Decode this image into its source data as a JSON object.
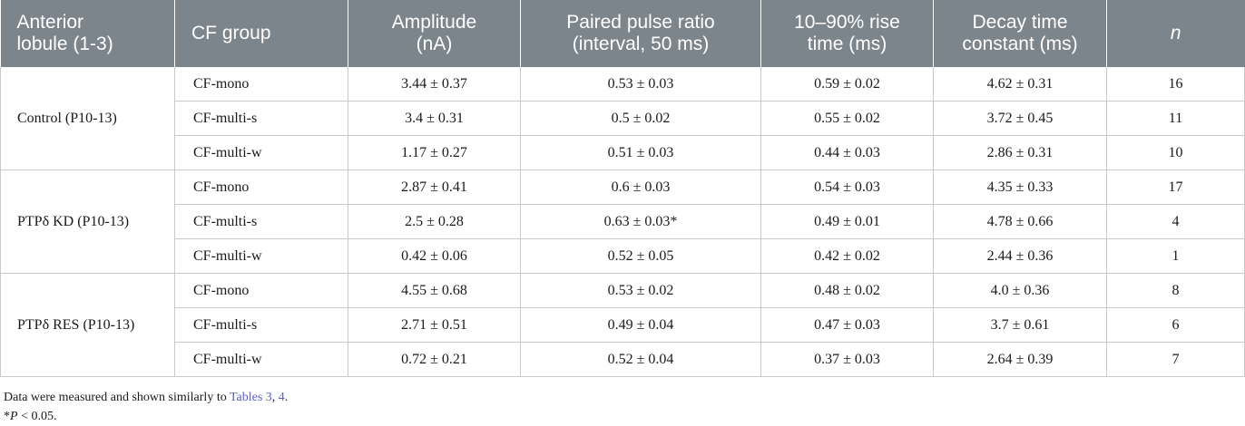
{
  "headers": [
    {
      "line1": "Anterior",
      "line2": "lobule (1-3)"
    },
    {
      "line1": "CF group",
      "line2": ""
    },
    {
      "line1": "Amplitude",
      "line2": "(nA)"
    },
    {
      "line1": "Paired pulse ratio",
      "line2": "(interval, 50 ms)"
    },
    {
      "line1": "10–90% rise",
      "line2": "time (ms)"
    },
    {
      "line1": "Decay time",
      "line2": "constant (ms)"
    },
    {
      "line1": "n",
      "line2": ""
    }
  ],
  "groups": [
    {
      "condition": "Control (P10-13)",
      "rows": [
        {
          "cf": "CF-mono",
          "amp": "3.44 ± 0.37",
          "ppr": "0.53 ± 0.03",
          "rise": "0.59 ± 0.02",
          "decay": "4.62 ± 0.31",
          "n": "16"
        },
        {
          "cf": "CF-multi-s",
          "amp": "3.4 ± 0.31",
          "ppr": "0.5 ± 0.02",
          "rise": "0.55 ± 0.02",
          "decay": "3.72 ± 0.45",
          "n": "11"
        },
        {
          "cf": "CF-multi-w",
          "amp": "1.17 ± 0.27",
          "ppr": "0.51 ± 0.03",
          "rise": "0.44 ± 0.03",
          "decay": "2.86 ± 0.31",
          "n": "10"
        }
      ]
    },
    {
      "condition": "PTPδ KD (P10-13)",
      "rows": [
        {
          "cf": "CF-mono",
          "amp": "2.87 ± 0.41",
          "ppr": "0.6 ± 0.03",
          "rise": "0.54 ± 0.03",
          "decay": "4.35 ± 0.33",
          "n": "17"
        },
        {
          "cf": "CF-multi-s",
          "amp": "2.5 ± 0.28",
          "ppr": "0.63 ± 0.03*",
          "rise": "0.49 ± 0.01",
          "decay": "4.78 ± 0.66",
          "n": "4"
        },
        {
          "cf": "CF-multi-w",
          "amp": "0.42 ± 0.06",
          "ppr": "0.52 ± 0.05",
          "rise": "0.42 ± 0.02",
          "decay": "2.44 ± 0.36",
          "n": "1"
        }
      ]
    },
    {
      "condition": "PTPδ RES (P10-13)",
      "rows": [
        {
          "cf": "CF-mono",
          "amp": "4.55 ± 0.68",
          "ppr": "0.53 ± 0.02",
          "rise": "0.48 ± 0.02",
          "decay": "4.0 ± 0.36",
          "n": "8"
        },
        {
          "cf": "CF-multi-s",
          "amp": "2.71 ± 0.51",
          "ppr": "0.49 ± 0.04",
          "rise": "0.47 ± 0.03",
          "decay": "3.7 ± 0.61",
          "n": "6"
        },
        {
          "cf": "CF-multi-w",
          "amp": "0.72 ± 0.21",
          "ppr": "0.52 ± 0.04",
          "rise": "0.37 ± 0.03",
          "decay": "2.64 ± 0.39",
          "n": "7"
        }
      ]
    }
  ],
  "footnote1": {
    "prefix": "Data were measured and shown similarly to ",
    "link1": "Tables 3",
    "sep": ", ",
    "link2": "4",
    "suffix": "."
  },
  "footnote2": {
    "star": "*",
    "p": "P",
    "rest": " < 0.05."
  },
  "colors": {
    "header_bg": "#7d858c",
    "link": "#5b5bd6",
    "grid": "#c9c9c9"
  }
}
